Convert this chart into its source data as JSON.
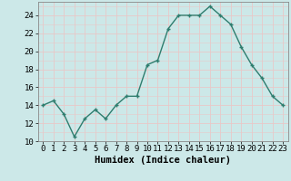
{
  "x": [
    0,
    1,
    2,
    3,
    4,
    5,
    6,
    7,
    8,
    9,
    10,
    11,
    12,
    13,
    14,
    15,
    16,
    17,
    18,
    19,
    20,
    21,
    22,
    23
  ],
  "y": [
    14,
    14.5,
    13,
    10.5,
    12.5,
    13.5,
    12.5,
    14,
    15,
    15,
    18.5,
    19,
    22.5,
    24,
    24,
    24,
    25,
    24,
    23,
    20.5,
    18.5,
    17,
    15,
    14
  ],
  "line_color": "#2e7d6e",
  "marker": "+",
  "bg_color": "#cce8e8",
  "grid_color": "#e8c8c8",
  "xlabel": "Humidex (Indice chaleur)",
  "xlim": [
    -0.5,
    23.5
  ],
  "ylim": [
    10,
    25.5
  ],
  "yticks": [
    10,
    12,
    14,
    16,
    18,
    20,
    22,
    24
  ],
  "xticks": [
    0,
    1,
    2,
    3,
    4,
    5,
    6,
    7,
    8,
    9,
    10,
    11,
    12,
    13,
    14,
    15,
    16,
    17,
    18,
    19,
    20,
    21,
    22,
    23
  ],
  "xlabel_fontsize": 7.5,
  "tick_fontsize": 6.5,
  "linewidth": 1.0,
  "marker_size": 3.5,
  "marker_linewidth": 1.0
}
